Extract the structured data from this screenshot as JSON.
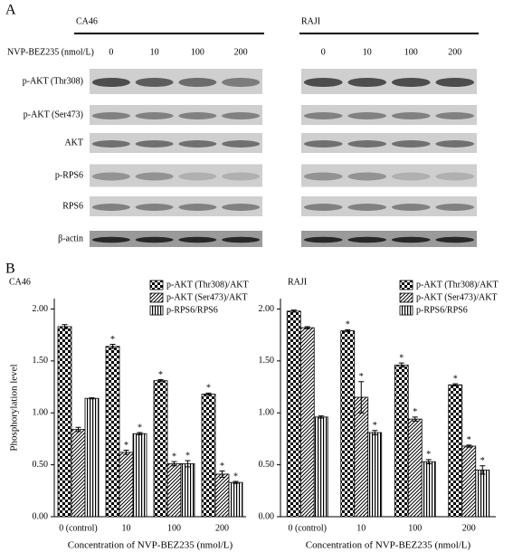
{
  "panel_a": {
    "label": "A",
    "treatment_label": "NVP-BEZ235 (nmol/L)",
    "doses": [
      "0",
      "10",
      "100",
      "200"
    ],
    "cell_lines": [
      "CA46",
      "RAJI"
    ],
    "proteins": [
      "p-AKT (Thr308)",
      "p-AKT (Ser473)",
      "AKT",
      "p-RPS6",
      "RPS6",
      "β-actin"
    ]
  },
  "panel_b": {
    "label": "B"
  },
  "chart_data": [
    {
      "type": "bar",
      "title": "CA46",
      "y_label": "Phosphorylation level",
      "x_label": "Concentration of NVP-BEZ235 (nmol/L)",
      "categories": [
        "0 (control)",
        "10",
        "100",
        "200"
      ],
      "ylim": [
        0,
        2.1
      ],
      "yticks": [
        {
          "value": 0,
          "label": "0.00"
        },
        {
          "value": 0.5,
          "label": "0.50"
        },
        {
          "value": 1,
          "label": "1.00"
        },
        {
          "value": 1.5,
          "label": "1.50"
        },
        {
          "value": 2,
          "label": "2.00"
        }
      ],
      "legend": "upper right",
      "significance_mark": "*",
      "series": [
        {
          "name": "p-AKT (Thr308)/AKT",
          "color": "#000000",
          "pattern": "checker",
          "values": [
            1.83,
            1.64,
            1.31,
            1.18
          ],
          "errors": [
            0.02,
            0.02,
            0.01,
            0.01
          ],
          "significant": [
            false,
            true,
            true,
            true
          ]
        },
        {
          "name": "p-AKT (Ser473)/AKT",
          "color": "#000000",
          "pattern": "diagonal",
          "values": [
            0.84,
            0.62,
            0.51,
            0.41
          ],
          "errors": [
            0.02,
            0.02,
            0.02,
            0.03
          ],
          "significant": [
            false,
            true,
            true,
            true
          ]
        },
        {
          "name": "p-RPS6/RPS6",
          "color": "#000000",
          "pattern": "vertical",
          "values": [
            1.14,
            0.8,
            0.51,
            0.33
          ],
          "errors": [
            0.005,
            0.01,
            0.03,
            0.01
          ],
          "significant": [
            false,
            true,
            true,
            true
          ]
        }
      ]
    },
    {
      "type": "bar",
      "title": "RAJI",
      "x_label": "Concentration of NVP-BEZ235 (nmol/L)",
      "categories": [
        "0 (control)",
        "10",
        "100",
        "200"
      ],
      "ylim": [
        0,
        2.1
      ],
      "yticks": [
        {
          "value": 0,
          "label": "0.00"
        },
        {
          "value": 0.5,
          "label": "0.50"
        },
        {
          "value": 1,
          "label": "1.00"
        },
        {
          "value": 1.5,
          "label": "1.50"
        },
        {
          "value": 2,
          "label": "2.00"
        }
      ],
      "legend": "upper right",
      "significance_mark": "*",
      "series": [
        {
          "name": "p-AKT (Thr308)/AKT",
          "color": "#000000",
          "pattern": "checker",
          "values": [
            1.98,
            1.79,
            1.46,
            1.27
          ],
          "errors": [
            0.01,
            0.01,
            0.02,
            0.01
          ],
          "significant": [
            false,
            true,
            true,
            true
          ]
        },
        {
          "name": "p-AKT (Ser473)/AKT",
          "color": "#000000",
          "pattern": "diagonal",
          "values": [
            1.82,
            1.15,
            0.94,
            0.68
          ],
          "errors": [
            0.01,
            0.15,
            0.02,
            0.01
          ],
          "significant": [
            false,
            true,
            true,
            true
          ]
        },
        {
          "name": "p-RPS6/RPS6",
          "color": "#000000",
          "pattern": "vertical",
          "values": [
            0.96,
            0.81,
            0.53,
            0.45
          ],
          "errors": [
            0.01,
            0.02,
            0.02,
            0.04
          ],
          "significant": [
            false,
            true,
            true,
            true
          ]
        }
      ]
    }
  ]
}
